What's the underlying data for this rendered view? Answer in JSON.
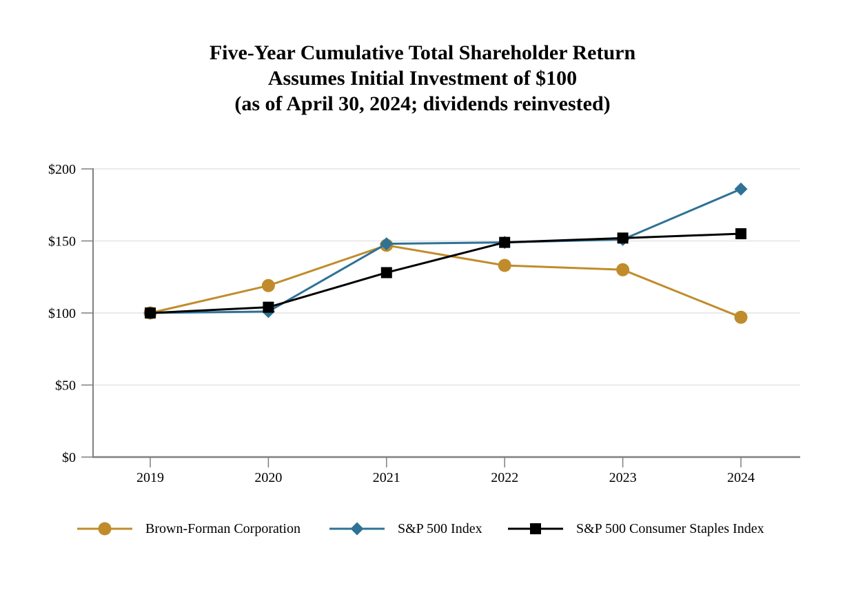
{
  "title": {
    "line1": "Five-Year Cumulative Total Shareholder Return",
    "line2": "Assumes Initial Investment of $100",
    "line3": "(as of April 30, 2024; dividends reinvested)"
  },
  "chart_data": {
    "type": "line",
    "x": [
      "2019",
      "2020",
      "2021",
      "2022",
      "2023",
      "2024"
    ],
    "series": [
      {
        "name": "Brown-Forman Corporation",
        "marker": "circle",
        "color": "#C08C2B",
        "values": [
          100,
          119,
          147,
          133,
          130,
          97
        ]
      },
      {
        "name": "S&P 500 Index",
        "marker": "diamond",
        "color": "#2E7296",
        "values": [
          100,
          101,
          148,
          149,
          151,
          186
        ]
      },
      {
        "name": "S&P 500 Consumer Staples Index",
        "marker": "square",
        "color": "#000000",
        "values": [
          100,
          104,
          128,
          149,
          152,
          155
        ]
      }
    ],
    "ylim": [
      0,
      200
    ],
    "ytick_step": 50,
    "ytick_labels": [
      "$0",
      "$50",
      "$100",
      "$150",
      "$200"
    ],
    "grid": "horizontal",
    "legend_position": "bottom",
    "axis_color": "#7F7F7F",
    "grid_color": "#E4E4E4",
    "text_color": "#000000"
  }
}
